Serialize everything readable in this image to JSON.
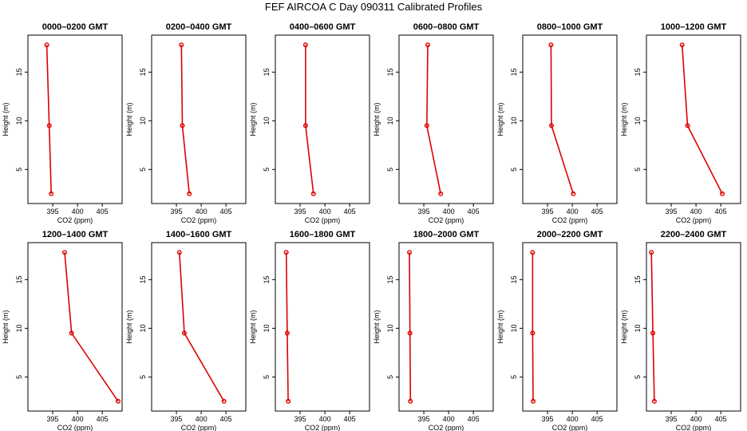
{
  "figure": {
    "title": "FEF AIRCOA C  Day 090311  Calibrated Profiles"
  },
  "chart_data": {
    "type": "line",
    "xlabel": "CO2 (ppm)",
    "ylabel": "Height (m)",
    "xlim": [
      390,
      409
    ],
    "ylim": [
      1.5,
      18.8
    ],
    "x_ticks": [
      395,
      400,
      405
    ],
    "y_ticks": [
      5,
      10,
      15
    ],
    "grid": false,
    "colors": {
      "series": "#dd0000"
    },
    "panels": [
      {
        "title": "0000–0200 GMT",
        "heights": [
          2.5,
          9.5,
          17.8
        ],
        "co2": [
          394.7,
          394.3,
          393.8
        ]
      },
      {
        "title": "0200–0400 GMT",
        "heights": [
          2.5,
          9.5,
          17.8
        ],
        "co2": [
          397.6,
          396.2,
          396.0
        ]
      },
      {
        "title": "0400–0600 GMT",
        "heights": [
          2.5,
          9.5,
          17.8
        ],
        "co2": [
          397.7,
          396.1,
          396.1
        ]
      },
      {
        "title": "0600–0800 GMT",
        "heights": [
          2.5,
          9.5,
          17.8
        ],
        "co2": [
          398.4,
          395.6,
          395.8
        ]
      },
      {
        "title": "0800–1000 GMT",
        "heights": [
          2.5,
          9.5,
          17.8
        ],
        "co2": [
          400.2,
          395.8,
          395.7
        ]
      },
      {
        "title": "1000–1200 GMT",
        "heights": [
          2.5,
          9.5,
          17.8
        ],
        "co2": [
          405.3,
          398.3,
          397.2
        ]
      },
      {
        "title": "1200–1400 GMT",
        "heights": [
          2.5,
          9.5,
          17.8
        ],
        "co2": [
          408.2,
          398.8,
          397.4
        ]
      },
      {
        "title": "1400–1600 GMT",
        "heights": [
          2.5,
          9.5,
          17.8
        ],
        "co2": [
          404.6,
          396.6,
          395.6
        ]
      },
      {
        "title": "1600–1800 GMT",
        "heights": [
          2.5,
          9.5,
          17.8
        ],
        "co2": [
          392.6,
          392.4,
          392.2
        ]
      },
      {
        "title": "1800–2000 GMT",
        "heights": [
          2.5,
          9.5,
          17.8
        ],
        "co2": [
          392.3,
          392.2,
          392.1
        ]
      },
      {
        "title": "2000–2200 GMT",
        "heights": [
          2.5,
          9.5,
          17.8
        ],
        "co2": [
          392.1,
          392.0,
          392.0
        ]
      },
      {
        "title": "2200–2400 GMT",
        "heights": [
          2.5,
          9.5,
          17.8
        ],
        "co2": [
          391.6,
          391.3,
          391.0
        ]
      }
    ]
  }
}
